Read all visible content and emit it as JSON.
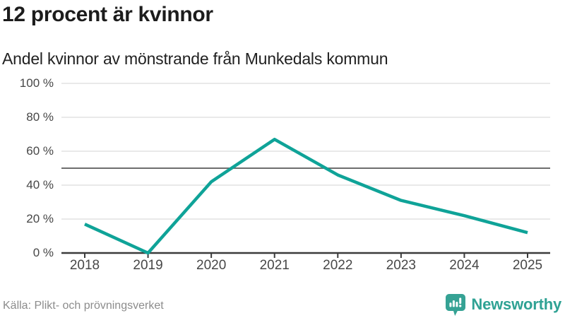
{
  "page": {
    "title": "12 procent är kvinnor",
    "subtitle": "Andel kvinnor av mönstrande från Munkedals kommun",
    "source": "Källa: Plikt- och prövningsverket",
    "brand": "Newsworthy"
  },
  "colors": {
    "line": "#0FA398",
    "reference_line": "#6E6E6E",
    "gridline": "#E2E2E2",
    "axis": "#3B3B3B",
    "axis_label": "#474747",
    "title_text": "#1C1C1C",
    "source_text": "#8C8C8C",
    "brand_teal": "#2FA294",
    "logo_bubble": "#35A294"
  },
  "chart_data": {
    "type": "line",
    "title": "12 procent är kvinnor",
    "subtitle": "Andel kvinnor av mönstrande från Munkedals kommun",
    "x": [
      "2018",
      "2019",
      "2020",
      "2021",
      "2022",
      "2023",
      "2024",
      "2025"
    ],
    "series": [
      {
        "name": "Andel kvinnor av mönstrande",
        "values": [
          17,
          0,
          42,
          67,
          46,
          31,
          22,
          12
        ]
      }
    ],
    "unit": "%",
    "ylim": [
      0,
      100
    ],
    "yticks": [
      0,
      20,
      40,
      60,
      80,
      100
    ],
    "ytick_labels": [
      "0 %",
      "20 %",
      "40 %",
      "60 %",
      "80 %",
      "100 %"
    ],
    "reference_line": 50,
    "grid": true,
    "legend": "none"
  }
}
